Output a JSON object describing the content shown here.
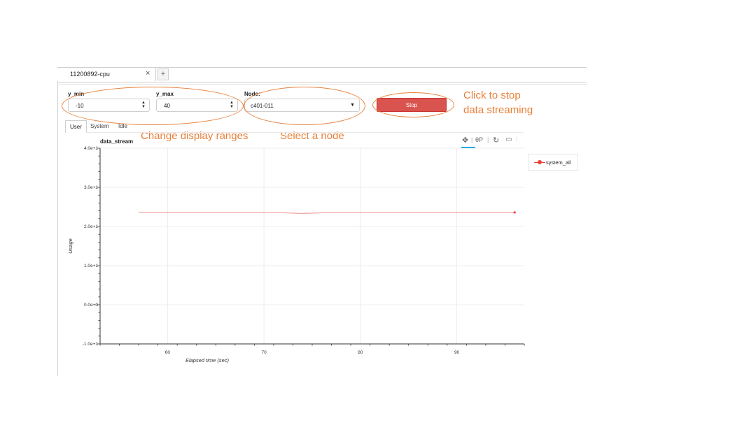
{
  "tabs": {
    "active_label": "11200892-cpu",
    "close_glyph": "×",
    "add_glyph": "+"
  },
  "controls": {
    "ymin": {
      "label": "y_min",
      "value": "-10"
    },
    "ymax": {
      "label": "y_max",
      "value": "40"
    },
    "node": {
      "label": "Node:",
      "value": "c401-011"
    },
    "stop_label": "Stop"
  },
  "annotations": {
    "stop": "Click to stop\ndata streaming",
    "stop_line1": "Click to stop",
    "stop_line2": "data streaming",
    "ranges": "Change display ranges",
    "node": "Select a node"
  },
  "subtabs": [
    "User",
    "System",
    "Idle"
  ],
  "toolbar": {
    "icons": [
      "pan-icon",
      "wheel-zoom-icon",
      "reset-icon",
      "save-icon"
    ]
  },
  "colors": {
    "accent": "#e8803a",
    "stop_button": "#d9534f",
    "series": "#e8413a"
  },
  "chart_data": {
    "type": "line",
    "title": "data_stream",
    "xlabel": "Elapsed time (sec)",
    "ylabel": "Usage",
    "xlim": [
      53,
      97
    ],
    "ylim": [
      -10,
      40
    ],
    "x_ticks": [
      60,
      70,
      80,
      90
    ],
    "y_ticks": [
      "-1.0e+1",
      "0.0e+0",
      "1.0e+1",
      "2.0e+1",
      "3.0e+1",
      "4.0e+1"
    ],
    "y_tick_values": [
      -10,
      0,
      10,
      20,
      30,
      40
    ],
    "grid": true,
    "legend_position": "top-right",
    "series": [
      {
        "name": "system_all",
        "x": [
          57,
          60,
          65,
          70,
          72,
          74,
          76,
          78,
          80,
          85,
          90,
          95,
          96
        ],
        "y": [
          23.6,
          23.6,
          23.6,
          23.6,
          23.5,
          23.3,
          23.5,
          23.6,
          23.6,
          23.6,
          23.6,
          23.6,
          23.6
        ]
      }
    ]
  }
}
